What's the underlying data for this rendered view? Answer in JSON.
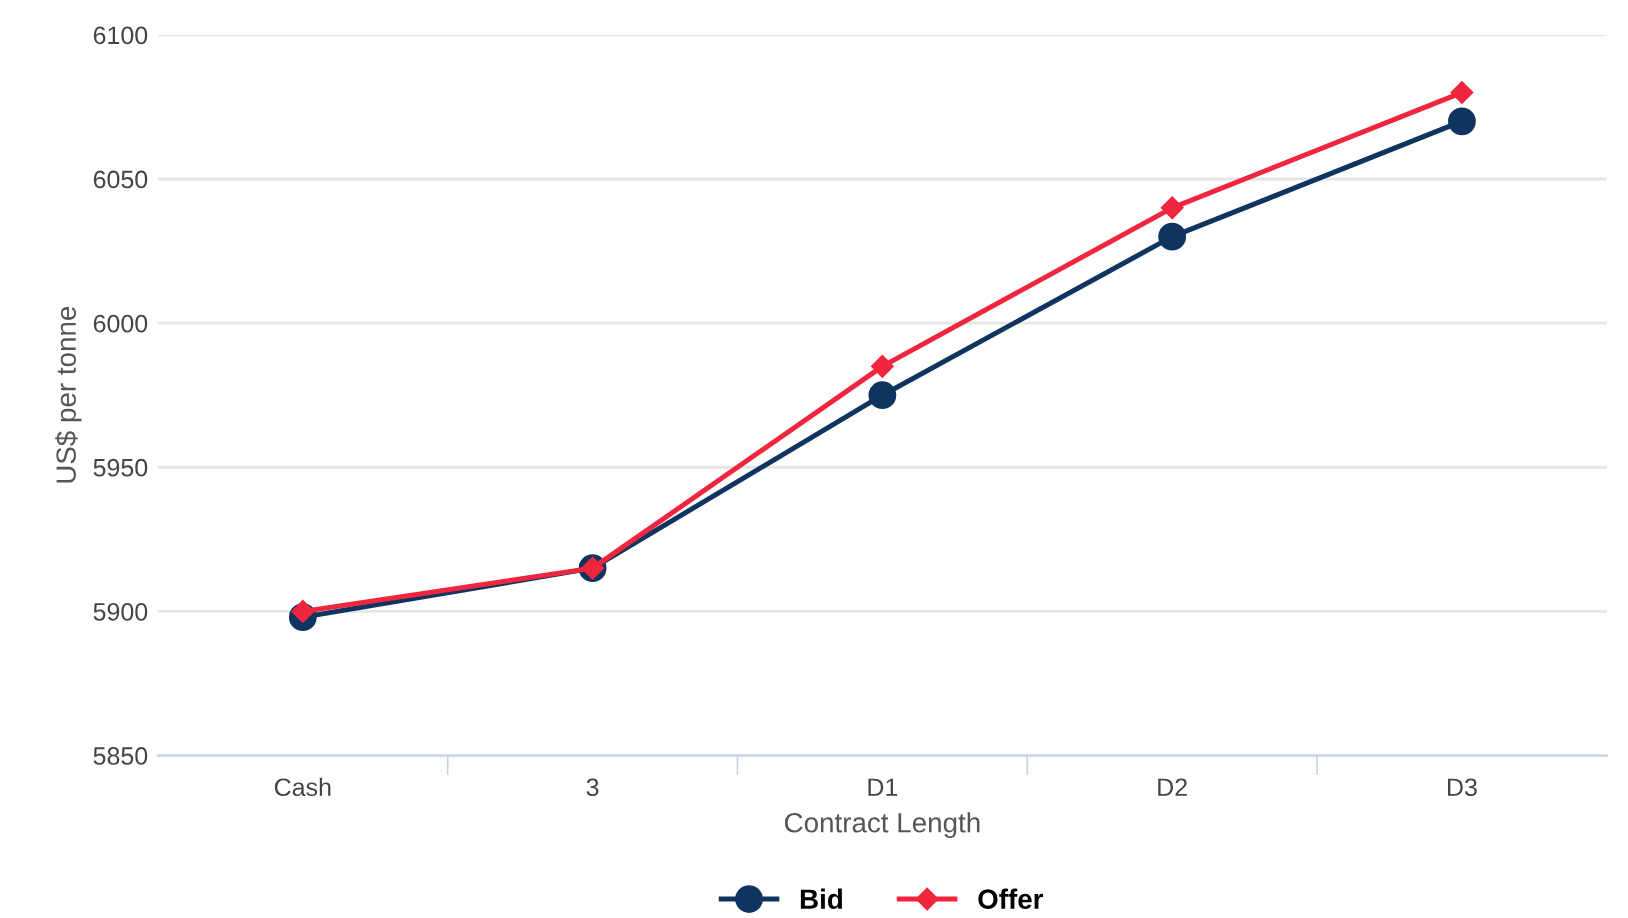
{
  "chart_data": {
    "type": "line",
    "xlabel": "Contract Length",
    "ylabel": "US$ per tonne",
    "categories": [
      "Cash",
      "3",
      "D1",
      "D2",
      "D3"
    ],
    "series": [
      {
        "name": "Bid",
        "color": "#0f3460",
        "marker": "circle",
        "values": [
          5898,
          5915,
          5975,
          6030,
          6070
        ]
      },
      {
        "name": "Offer",
        "color": "#f0263f",
        "marker": "diamond",
        "values": [
          5900,
          5915,
          5985,
          6040,
          6080
        ]
      }
    ],
    "ylim": [
      5850,
      6100
    ],
    "yticks": [
      5850,
      5900,
      5950,
      6000,
      6050,
      6100
    ],
    "grid": "y",
    "legend": "bottom",
    "line_style": "solid"
  }
}
